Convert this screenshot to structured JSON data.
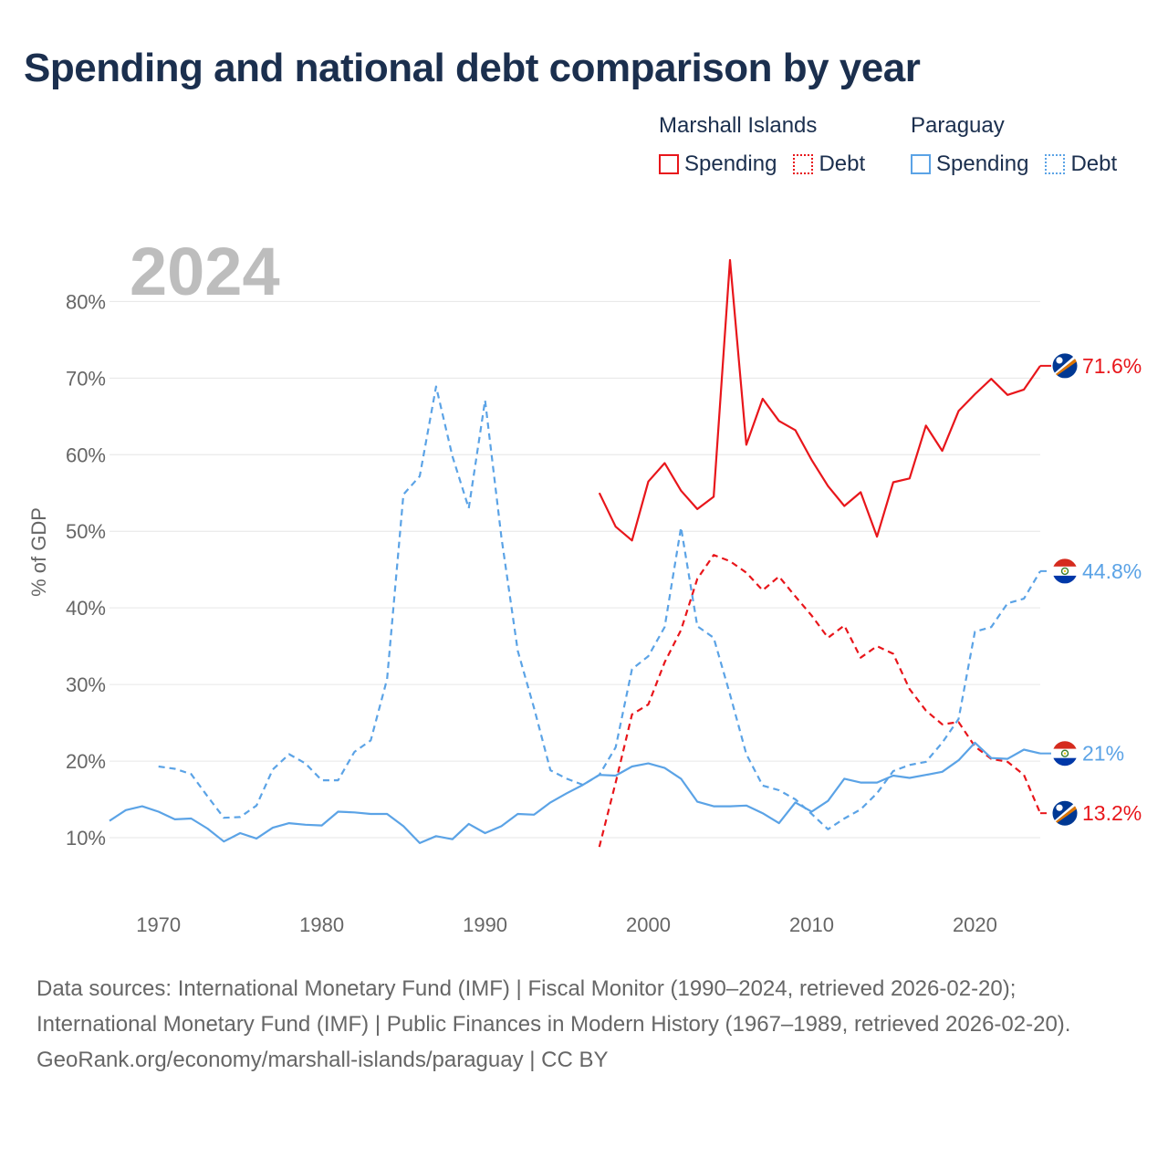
{
  "title": "Spending and national debt comparison by year",
  "legend": {
    "groups": [
      {
        "name": "Marshall Islands",
        "color": "#e8161b",
        "items": [
          {
            "label": "Spending",
            "style": "solid"
          },
          {
            "label": "Debt",
            "style": "dotted"
          }
        ]
      },
      {
        "name": "Paraguay",
        "color": "#5ba3e6",
        "items": [
          {
            "label": "Spending",
            "style": "solid"
          },
          {
            "label": "Debt",
            "style": "dotted"
          }
        ]
      }
    ]
  },
  "year_label": "2024",
  "footer": {
    "sources": "Data sources: International Monetary Fund (IMF) | Fiscal Monitor (1990–2024, retrieved 2026-02-20); International Monetary Fund (IMF) | Public Finances in Modern History (1967–1989, retrieved 2026-02-20).",
    "credit": "GeoRank.org/economy/marshall-islands/paraguay | CC BY"
  },
  "chart_data": {
    "type": "line",
    "title": "Spending and national debt comparison by year",
    "xlabel": "",
    "ylabel": "% of GDP",
    "xlim": [
      1967,
      2024
    ],
    "ylim": [
      5,
      86
    ],
    "xticks": [
      1970,
      1980,
      1990,
      2000,
      2010,
      2020
    ],
    "yticks": [
      10,
      20,
      30,
      40,
      50,
      60,
      70,
      80
    ],
    "ytick_labels": [
      "10%",
      "20%",
      "30%",
      "40%",
      "50%",
      "60%",
      "70%",
      "80%"
    ],
    "grid": true,
    "series": [
      {
        "name": "Marshall Islands Spending",
        "country": "Marshall Islands",
        "metric": "Spending",
        "color": "#e8161b",
        "dashed": false,
        "end_label": "71.6%",
        "x": [
          1997,
          1998,
          1999,
          2000,
          2001,
          2002,
          2003,
          2004,
          2005,
          2006,
          2007,
          2008,
          2009,
          2010,
          2011,
          2012,
          2013,
          2014,
          2015,
          2016,
          2017,
          2018,
          2019,
          2020,
          2021,
          2022,
          2023,
          2024
        ],
        "y": [
          55.0,
          50.6,
          48.8,
          56.5,
          58.9,
          55.3,
          52.9,
          54.5,
          85.4,
          61.3,
          67.3,
          64.4,
          63.2,
          59.3,
          55.9,
          53.3,
          55.1,
          49.3,
          56.4,
          56.9,
          63.8,
          60.5,
          65.7,
          67.9,
          69.9,
          67.8,
          68.5,
          71.6
        ]
      },
      {
        "name": "Marshall Islands Debt",
        "country": "Marshall Islands",
        "metric": "Debt",
        "color": "#e8161b",
        "dashed": true,
        "end_label": "13.2%",
        "x": [
          1997,
          1998,
          1999,
          2000,
          2001,
          2002,
          2003,
          2004,
          2005,
          2006,
          2007,
          2008,
          2009,
          2010,
          2011,
          2012,
          2013,
          2014,
          2015,
          2016,
          2017,
          2018,
          2019,
          2020,
          2021,
          2022,
          2023,
          2024
        ],
        "y": [
          8.8,
          17.2,
          26.1,
          27.4,
          32.9,
          37.1,
          43.8,
          46.9,
          46.1,
          44.6,
          42.3,
          44.1,
          41.5,
          39.0,
          36.1,
          37.7,
          33.5,
          35.0,
          34.0,
          29.4,
          26.6,
          24.8,
          25.1,
          21.9,
          20.3,
          19.9,
          18.2,
          13.2
        ]
      },
      {
        "name": "Paraguay Spending",
        "country": "Paraguay",
        "metric": "Spending",
        "color": "#5ba3e6",
        "dashed": false,
        "end_label": "21%",
        "x": [
          1967,
          1968,
          1969,
          1970,
          1971,
          1972,
          1973,
          1974,
          1975,
          1976,
          1977,
          1978,
          1979,
          1980,
          1981,
          1982,
          1983,
          1984,
          1985,
          1986,
          1987,
          1988,
          1989,
          1990,
          1991,
          1992,
          1993,
          1994,
          1995,
          1996,
          1997,
          1998,
          1999,
          2000,
          2001,
          2002,
          2003,
          2004,
          2005,
          2006,
          2007,
          2008,
          2009,
          2010,
          2011,
          2012,
          2013,
          2014,
          2015,
          2016,
          2017,
          2018,
          2019,
          2020,
          2021,
          2022,
          2023,
          2024
        ],
        "y": [
          12.2,
          13.6,
          14.1,
          13.4,
          12.4,
          12.5,
          11.2,
          9.5,
          10.6,
          9.9,
          11.3,
          11.9,
          11.7,
          11.6,
          13.4,
          13.3,
          13.1,
          13.1,
          11.5,
          9.3,
          10.2,
          9.8,
          11.8,
          10.6,
          11.5,
          13.1,
          13.0,
          14.6,
          15.8,
          16.9,
          18.2,
          18.1,
          19.3,
          19.7,
          19.1,
          17.7,
          14.7,
          14.1,
          14.1,
          14.2,
          13.2,
          11.9,
          14.6,
          13.4,
          14.8,
          17.7,
          17.2,
          17.2,
          18.1,
          17.8,
          18.2,
          18.6,
          20.1,
          22.4,
          20.4,
          20.3,
          21.5,
          21.0
        ]
      },
      {
        "name": "Paraguay Debt",
        "country": "Paraguay",
        "metric": "Debt",
        "color": "#5ba3e6",
        "dashed": true,
        "end_label": "44.8%",
        "x": [
          1970,
          1971,
          1972,
          1973,
          1974,
          1975,
          1976,
          1977,
          1978,
          1979,
          1980,
          1981,
          1982,
          1983,
          1984,
          1985,
          1986,
          1987,
          1988,
          1989,
          1990,
          1991,
          1992,
          1993,
          1994,
          1995,
          1996,
          1997,
          1998,
          1999,
          2000,
          2001,
          2002,
          2003,
          2004,
          2005,
          2006,
          2007,
          2008,
          2009,
          2010,
          2011,
          2012,
          2013,
          2014,
          2015,
          2016,
          2017,
          2018,
          2019,
          2020,
          2021,
          2022,
          2023,
          2024
        ],
        "y": [
          19.3,
          19.0,
          18.3,
          15.4,
          12.6,
          12.7,
          14.2,
          18.9,
          20.9,
          19.7,
          17.5,
          17.5,
          21.2,
          22.7,
          30.7,
          54.8,
          57.2,
          68.9,
          59.8,
          53.0,
          67.1,
          49.2,
          34.4,
          26.9,
          18.8,
          17.7,
          16.9,
          18.2,
          21.8,
          32.0,
          33.7,
          37.5,
          50.5,
          37.6,
          36.1,
          28.7,
          20.9,
          16.8,
          16.2,
          15.0,
          13.1,
          11.1,
          12.5,
          13.7,
          15.8,
          18.7,
          19.5,
          19.9,
          22.4,
          25.5,
          36.9,
          37.5,
          40.6,
          41.2,
          44.8
        ]
      }
    ]
  }
}
